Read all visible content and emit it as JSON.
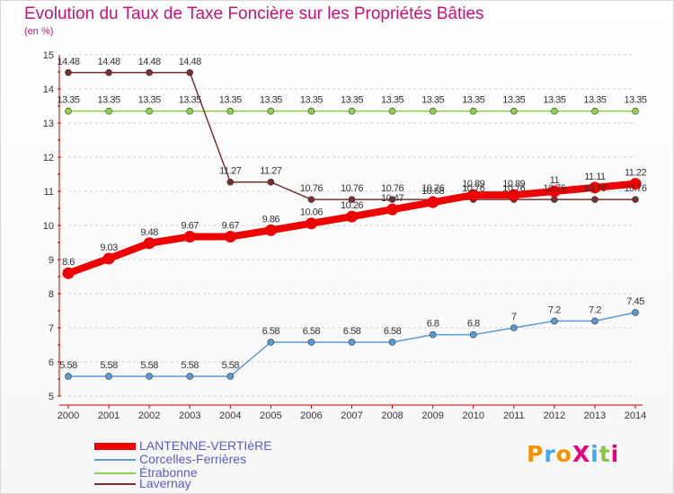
{
  "chart_data": {
    "type": "line",
    "title": "Evolution du Taux de Taxe Foncière sur les Propriétés Bâties",
    "ylabel": "(en %)",
    "xlabel": "",
    "categories": [
      "2000",
      "2001",
      "2002",
      "2003",
      "2004",
      "2005",
      "2006",
      "2007",
      "2008",
      "2009",
      "2010",
      "2011",
      "2012",
      "2013",
      "2014"
    ],
    "ylim": [
      5,
      15
    ],
    "yticks": [
      "5",
      "6",
      "7",
      "8",
      "9",
      "10",
      "11",
      "12",
      "13",
      "14",
      "15"
    ],
    "series": [
      {
        "name": "LANTENNE-VERTIèRE",
        "color": "#ee0000",
        "values": [
          8.6,
          9.03,
          9.48,
          9.67,
          9.67,
          9.86,
          10.06,
          10.26,
          10.47,
          10.68,
          10.89,
          10.89,
          11,
          11.11,
          11.22
        ],
        "labels": [
          "8.6",
          "9.03",
          "9.48",
          "9.67",
          "9.67",
          "9.86",
          "10.06",
          "10.26",
          "10.47",
          "10.68",
          "10.89",
          "10.89",
          "11",
          "11.11",
          "11.22"
        ]
      },
      {
        "name": "Corcelles-Ferrières",
        "color": "#5b9bd5",
        "values": [
          5.58,
          5.58,
          5.58,
          5.58,
          5.58,
          6.58,
          6.58,
          6.58,
          6.58,
          6.8,
          6.8,
          7,
          7.2,
          7.2,
          7.45
        ],
        "labels": [
          "5.58",
          "5.58",
          "5.58",
          "5.58",
          "5.58",
          "6.58",
          "6.58",
          "6.58",
          "6.58",
          "6.8",
          "6.8",
          "7",
          "7.2",
          "7.2",
          "7.45"
        ]
      },
      {
        "name": "Étrabonne",
        "color": "#8fd14f",
        "values": [
          13.35,
          13.35,
          13.35,
          13.35,
          13.35,
          13.35,
          13.35,
          13.35,
          13.35,
          13.35,
          13.35,
          13.35,
          13.35,
          13.35,
          13.35
        ],
        "labels": [
          "13.35",
          "13.35",
          "13.35",
          "13.35",
          "13.35",
          "13.35",
          "13.35",
          "13.35",
          "13.35",
          "13.35",
          "13.35",
          "13.35",
          "13.35",
          "13.35",
          "13.35"
        ]
      },
      {
        "name": "Lavernay",
        "color": "#7a2f2f",
        "values": [
          14.48,
          14.48,
          14.48,
          14.48,
          11.27,
          11.27,
          10.76,
          10.76,
          10.76,
          10.76,
          10.76,
          10.76,
          10.76,
          10.76,
          10.76
        ],
        "labels": [
          "14.48",
          "14.48",
          "14.48",
          "14.48",
          "11.27",
          "11.27",
          "10.76",
          "10.76",
          "10.76",
          "10.76",
          "10.76",
          "10.76",
          "10.76",
          "10.76",
          "10.76"
        ]
      }
    ],
    "legend": "bottom-left"
  },
  "logo": {
    "text": "ProXiti",
    "colors": [
      "#f39200",
      "#3fa9f5",
      "#f39200",
      "#e6007e",
      "#3fa9f5",
      "#8cc63f",
      "#e6007e"
    ]
  }
}
